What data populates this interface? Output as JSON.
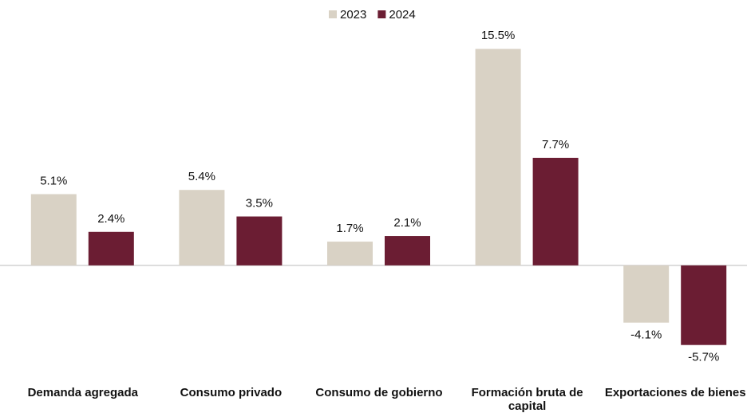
{
  "chart_data": {
    "type": "bar",
    "categories": [
      "Demanda agregada",
      "Consumo privado",
      "Consumo de gobierno",
      "Formación bruta de capital",
      "Exportaciones de bienes"
    ],
    "series": [
      {
        "name": "2023",
        "color": "#d9d2c5",
        "values": [
          5.1,
          5.4,
          1.7,
          15.5,
          -4.1
        ],
        "value_labels": [
          "5.1%",
          "5.4%",
          "1.7%",
          "15.5%",
          "-4.1%"
        ]
      },
      {
        "name": "2024",
        "color": "#6b1d33",
        "values": [
          2.4,
          3.5,
          2.1,
          7.7,
          -5.7
        ],
        "value_labels": [
          "2.4%",
          "3.5%",
          "2.1%",
          "7.7%",
          "-5.7%"
        ]
      }
    ],
    "ylim": [
      -8,
      17
    ],
    "legend": "top"
  }
}
